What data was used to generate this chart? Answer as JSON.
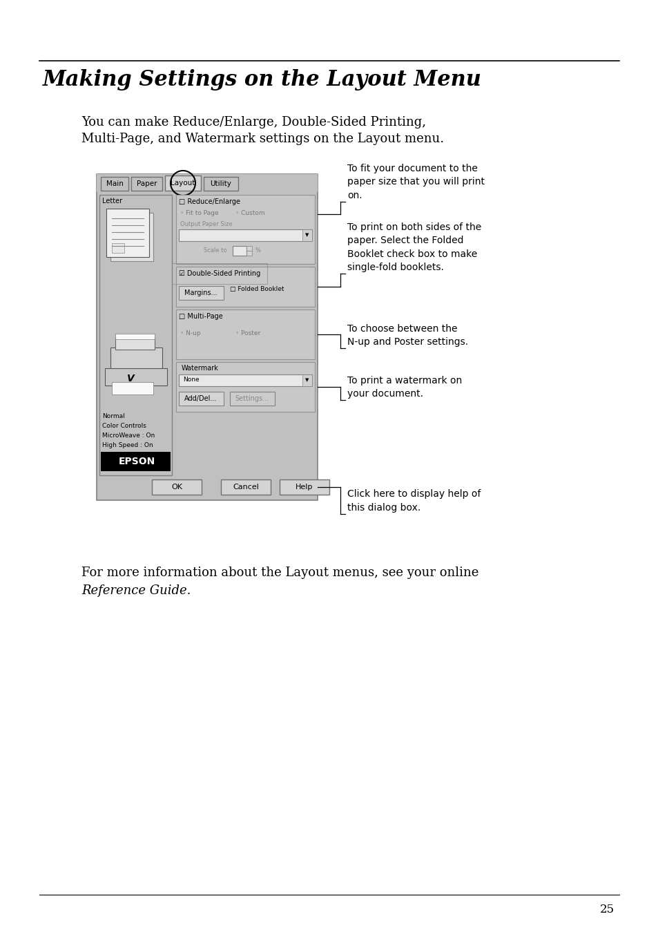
{
  "title": "Making Settings on the Layout Menu",
  "page_number": "25",
  "bg_color": "#ffffff",
  "intro_line1": "You can make Reduce/Enlarge, Double-Sided Printing,",
  "intro_line2": "Multi-Page, and Watermark settings on the Layout menu.",
  "footer_line1": "For more information about the Layout menus, see your online",
  "footer_line2": "Reference Guide.",
  "dialog_gray": "#c0c0c0",
  "dialog_dark_gray": "#a0a0a0",
  "dialog_white": "#ffffff",
  "dialog_light": "#d4d4d4",
  "tab_labels": [
    "Main",
    "Paper",
    "Layout",
    "Utility"
  ],
  "info_lines": [
    "Normal",
    "Color Controls",
    "MicroWeave : On",
    "High Speed : On"
  ],
  "ann1": "To fit your document to the\npaper size that you will print\non.",
  "ann2": "To print on both sides of the\npaper. Select the Folded\nBooklet check box to make\nsingle-fold booklets.",
  "ann3": "To choose between the\nN-up and Poster settings.",
  "ann4": "To print a watermark on\nyour document.",
  "ann5": "Click here to display help of\nthis dialog box."
}
